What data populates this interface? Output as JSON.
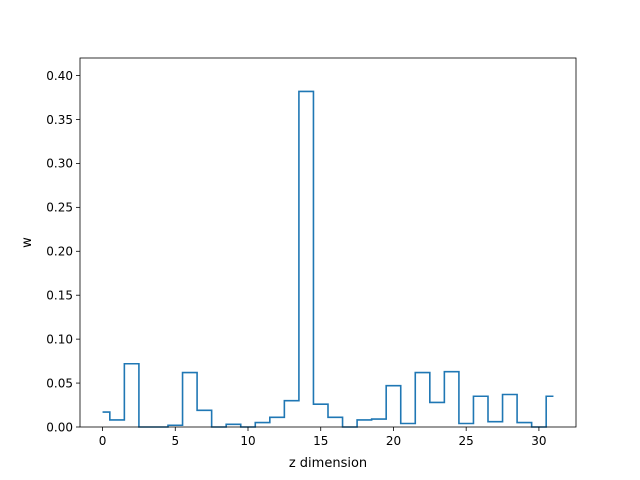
{
  "chart_data": {
    "type": "line",
    "style": "step",
    "xlabel": "z dimension",
    "ylabel": "w",
    "xlim": [
      -1.55,
      32.55
    ],
    "ylim": [
      0,
      0.42
    ],
    "xticks": [
      0,
      5,
      10,
      15,
      20,
      25,
      30
    ],
    "yticks": [
      0.0,
      0.05,
      0.1,
      0.15,
      0.2,
      0.25,
      0.3,
      0.35,
      0.4
    ],
    "grid": false,
    "legend": false,
    "color": "#1f77b4",
    "x": [
      0,
      1,
      2,
      3,
      4,
      5,
      6,
      7,
      8,
      9,
      10,
      11,
      12,
      13,
      14,
      15,
      16,
      17,
      18,
      19,
      20,
      21,
      22,
      23,
      24,
      25,
      26,
      27,
      28,
      29,
      30,
      31
    ],
    "values": [
      0.017,
      0.008,
      0.072,
      0.0,
      0.0,
      0.002,
      0.062,
      0.019,
      0.0,
      0.003,
      0.0,
      0.005,
      0.011,
      0.03,
      0.382,
      0.026,
      0.011,
      0.0,
      0.008,
      0.009,
      0.047,
      0.004,
      0.062,
      0.028,
      0.063,
      0.004,
      0.035,
      0.006,
      0.037,
      0.005,
      0.0,
      0.035
    ]
  }
}
